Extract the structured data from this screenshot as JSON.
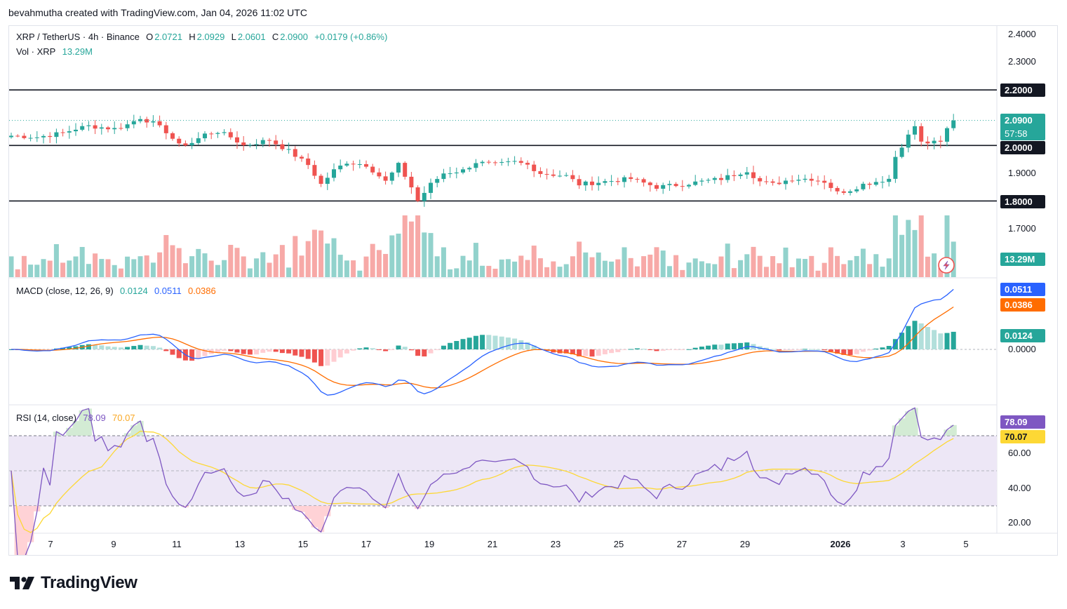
{
  "header": {
    "attribution": "bevahmutha created with TradingView.com, Jan 04, 2026 11:02 UTC"
  },
  "legend": {
    "symbol": "XRP / TetherUS · 4h · Binance",
    "o_label": "O",
    "o_value": "2.0721",
    "h_label": "H",
    "h_value": "2.0929",
    "l_label": "L",
    "l_value": "2.0601",
    "c_label": "C",
    "c_value": "2.0900",
    "change": "+0.0179 (+0.86%)",
    "vol_label": "Vol · XRP",
    "vol_value": "13.29M"
  },
  "macd_legend": {
    "label": "MACD (close, 12, 26, 9)",
    "hist": "0.0124",
    "macd": "0.0511",
    "signal": "0.0386"
  },
  "rsi_legend": {
    "label": "RSI (14, close)",
    "rsi": "78.09",
    "ma": "70.07"
  },
  "price_axis": {
    "labels": [
      "2.4000",
      "2.3000",
      "1.9000",
      "1.7000"
    ]
  },
  "price_tags": {
    "level_220": "2.2000",
    "last_price": "2.0900",
    "countdown": "57:58",
    "level_200": "2.0000",
    "level_180": "1.8000",
    "volume": "13.29M"
  },
  "macd_axis": {
    "zero": "0.0000",
    "macd_tag": "0.0511",
    "signal_tag": "0.0386",
    "hist_tag": "0.0124"
  },
  "rsi_axis": {
    "labels": [
      "60.00",
      "40.00",
      "20.00"
    ],
    "rsi_tag": "78.09",
    "ma_tag": "70.07"
  },
  "time_axis": {
    "labels": [
      "7",
      "9",
      "11",
      "13",
      "15",
      "17",
      "19",
      "21",
      "23",
      "25",
      "27",
      "29",
      "2026",
      "3",
      "5"
    ]
  },
  "footer": {
    "brand": "TradingView"
  },
  "colors": {
    "up": "#26a69a",
    "down": "#ef5350",
    "macd": "#2962ff",
    "signal": "#ff6d00",
    "rsi": "#7e57c2",
    "rsi_ma": "#fdd835",
    "rsi_band": "#ede7f6"
  },
  "chart_data": {
    "type": "candlestick",
    "symbol": "XRP / TetherUS",
    "interval": "4h",
    "x_labels": [
      "7",
      "9",
      "11",
      "13",
      "15",
      "17",
      "19",
      "21",
      "23",
      "25",
      "27",
      "29",
      "2026",
      "3",
      "5"
    ],
    "close_path": [
      [
        0,
        2.035
      ],
      [
        4,
        2.03
      ],
      [
        8,
        2.045
      ],
      [
        10,
        2.06
      ],
      [
        12,
        2.07
      ],
      [
        14,
        2.065
      ],
      [
        16,
        2.06
      ],
      [
        18,
        2.075
      ],
      [
        20,
        2.1
      ],
      [
        22,
        2.08
      ],
      [
        24,
        2.05
      ],
      [
        26,
        2.0
      ],
      [
        28,
        2.01
      ],
      [
        30,
        2.04
      ],
      [
        32,
        2.05
      ],
      [
        34,
        2.03
      ],
      [
        36,
        2.0
      ],
      [
        40,
        2.02
      ],
      [
        43,
        1.98
      ],
      [
        46,
        1.93
      ],
      [
        48,
        1.86
      ],
      [
        50,
        1.91
      ],
      [
        52,
        1.94
      ],
      [
        55,
        1.93
      ],
      [
        58,
        1.87
      ],
      [
        60,
        1.93
      ],
      [
        62,
        1.85
      ],
      [
        63,
        1.8
      ],
      [
        65,
        1.86
      ],
      [
        67,
        1.9
      ],
      [
        70,
        1.91
      ],
      [
        72,
        1.94
      ],
      [
        75,
        1.93
      ],
      [
        78,
        1.94
      ],
      [
        80,
        1.93
      ],
      [
        82,
        1.9
      ],
      [
        86,
        1.89
      ],
      [
        88,
        1.86
      ],
      [
        92,
        1.87
      ],
      [
        96,
        1.88
      ],
      [
        100,
        1.85
      ],
      [
        104,
        1.86
      ],
      [
        107,
        1.87
      ],
      [
        110,
        1.88
      ],
      [
        114,
        1.91
      ],
      [
        116,
        1.87
      ],
      [
        118,
        1.86
      ],
      [
        121,
        1.88
      ],
      [
        124,
        1.88
      ],
      [
        126,
        1.87
      ],
      [
        128,
        1.83
      ],
      [
        130,
        1.84
      ],
      [
        132,
        1.86
      ],
      [
        134,
        1.87
      ],
      [
        136,
        1.88
      ],
      [
        137,
        1.96
      ],
      [
        138,
        2.0
      ],
      [
        140,
        2.07
      ],
      [
        141,
        2.01
      ],
      [
        144,
        2.01
      ],
      [
        145,
        2.06
      ],
      [
        146,
        2.09
      ]
    ],
    "volume_units": "XRP",
    "last_volume": 13.29,
    "levels": [
      2.2,
      2.0,
      1.8
    ],
    "price_ylim": [
      1.635,
      2.445
    ],
    "macd": {
      "fast": 12,
      "slow": 26,
      "signal": 9,
      "last": {
        "hist": 0.0124,
        "macd": 0.0511,
        "signal": 0.0386
      },
      "ylim": [
        -0.0233,
        0.0576
      ]
    },
    "rsi": {
      "length": 14,
      "last": {
        "rsi": 78.09,
        "ma": 70.07
      },
      "bands": [
        70,
        50,
        30
      ],
      "ylim": [
        15,
        85
      ]
    },
    "grid": false
  }
}
